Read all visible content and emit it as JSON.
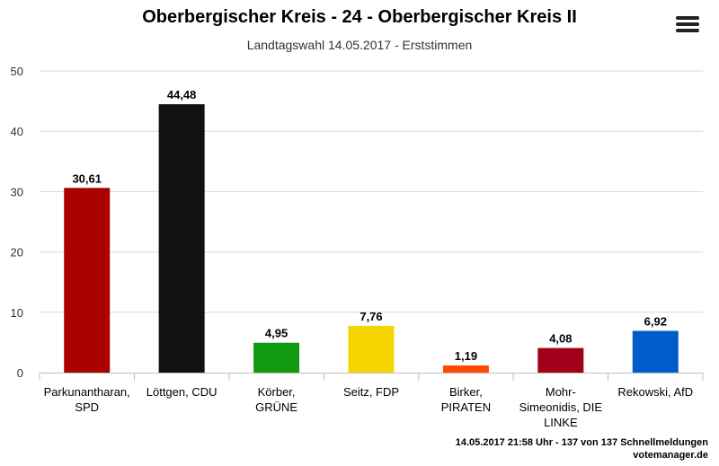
{
  "chart_data": {
    "type": "bar",
    "title": "Oberbergischer Kreis - 24 - Oberbergischer Kreis II",
    "subtitle": "Landtagswahl 14.05.2017 - Erststimmen",
    "categories": [
      [
        "Parkunantharan,",
        "SPD"
      ],
      [
        "Löttgen, CDU"
      ],
      [
        "Körber,",
        "GRÜNE"
      ],
      [
        "Seitz, FDP"
      ],
      [
        "Birker,",
        "PIRATEN"
      ],
      [
        "Mohr-",
        "Simeonidis, DIE",
        "LINKE"
      ],
      [
        "Rekowski, AfD"
      ]
    ],
    "values": [
      30.61,
      44.48,
      4.95,
      7.76,
      1.19,
      4.08,
      6.92
    ],
    "value_labels": [
      "30,61",
      "44,48",
      "4,95",
      "7,76",
      "1,19",
      "4,08",
      "6,92"
    ],
    "colors": [
      "#aa0000",
      "#111111",
      "#119a11",
      "#f5d600",
      "#ff4a00",
      "#a0001a",
      "#005cc8"
    ],
    "ylim": [
      0,
      50
    ],
    "yticks": [
      0,
      10,
      20,
      30,
      40,
      50
    ],
    "grid": true,
    "legend": "none"
  },
  "footer": {
    "status": "14.05.2017 21:58 Uhr - 137 von 137 Schnellmeldungen",
    "source": "votemanager.de"
  },
  "menu_icon": "hamburger-menu-icon"
}
